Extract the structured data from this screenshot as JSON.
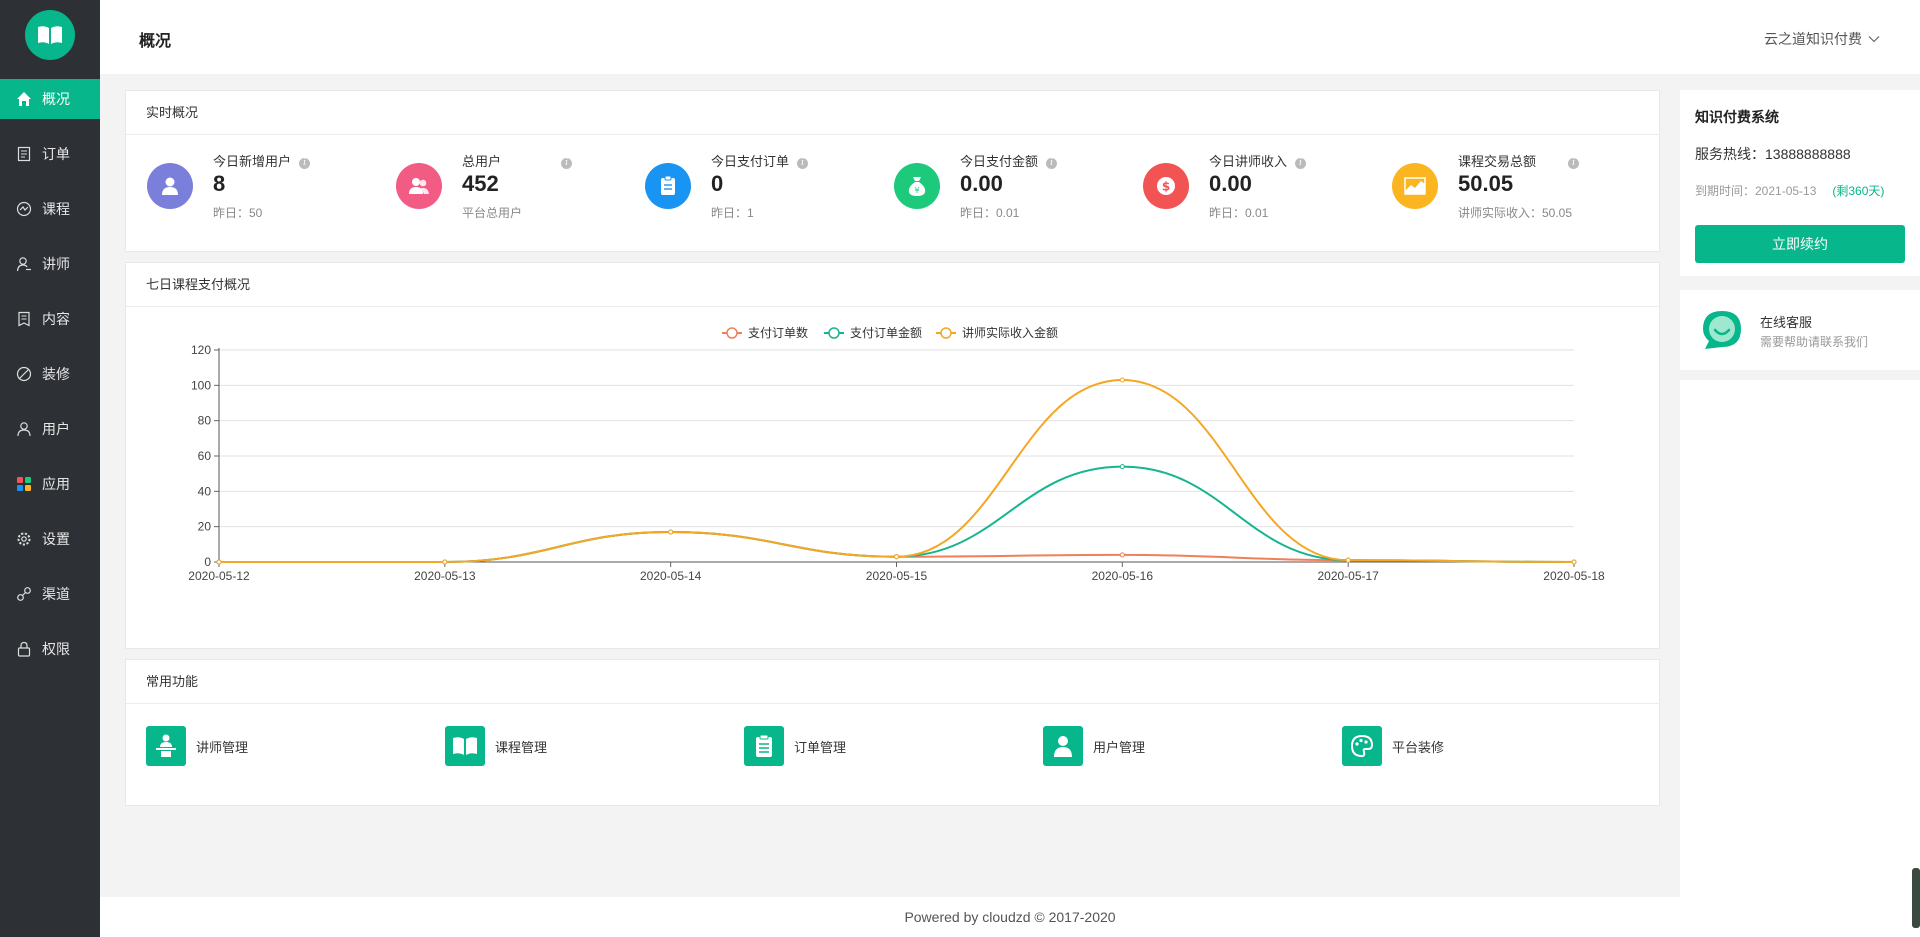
{
  "header": {
    "title": "概况",
    "shop_name": "云之道知识付费"
  },
  "sidebar": {
    "items": [
      {
        "label": "概况",
        "icon": "home-icon"
      },
      {
        "label": "订单",
        "icon": "order-icon"
      },
      {
        "label": "课程",
        "icon": "course-icon"
      },
      {
        "label": "讲师",
        "icon": "teacher-icon"
      },
      {
        "label": "内容",
        "icon": "content-icon"
      },
      {
        "label": "装修",
        "icon": "decorate-icon"
      },
      {
        "label": "用户",
        "icon": "user-icon"
      },
      {
        "label": "应用",
        "icon": "apps-icon"
      },
      {
        "label": "设置",
        "icon": "gear-icon"
      },
      {
        "label": "渠道",
        "icon": "channel-icon"
      },
      {
        "label": "权限",
        "icon": "lock-icon"
      }
    ]
  },
  "realtime": {
    "title": "实时概况",
    "stats": [
      {
        "label": "今日新增用户",
        "value": "8",
        "sub": "昨日：50",
        "color": "#7b7fdc"
      },
      {
        "label": "总用户",
        "value": "452",
        "sub": "平台总用户",
        "color": "#f25b84"
      },
      {
        "label": "今日支付订单",
        "value": "0",
        "sub": "昨日：1",
        "color": "#1a94f2"
      },
      {
        "label": "今日支付金额",
        "value": "0.00",
        "sub": "昨日：0.01",
        "color": "#1dc97a"
      },
      {
        "label": "今日讲师收入",
        "value": "0.00",
        "sub": "昨日：0.01",
        "color": "#f25353"
      },
      {
        "label": "课程交易总额",
        "value": "50.05",
        "sub": "讲师实际收入：50.05",
        "color": "#fbb520"
      }
    ]
  },
  "chart_panel": {
    "title": "七日课程支付概况"
  },
  "chart_data": {
    "type": "line",
    "categories": [
      "2020-05-12",
      "2020-05-13",
      "2020-05-14",
      "2020-05-15",
      "2020-05-16",
      "2020-05-17",
      "2020-05-18"
    ],
    "ylim": [
      0,
      120
    ],
    "yticks": [
      0,
      20,
      40,
      60,
      80,
      100,
      120
    ],
    "legend_position": "top-center",
    "grid": true,
    "smooth": true,
    "series": [
      {
        "name": "支付订单数",
        "color": "#f0805a",
        "values": [
          0,
          0,
          17,
          3,
          4,
          1,
          0
        ]
      },
      {
        "name": "支付订单金额",
        "color": "#17b58f",
        "values": [
          0,
          0,
          17,
          3,
          54,
          1,
          0
        ]
      },
      {
        "name": "讲师实际收入金额",
        "color": "#f5a623",
        "values": [
          0,
          0,
          17,
          3,
          103,
          1,
          0
        ]
      }
    ]
  },
  "functions": {
    "title": "常用功能",
    "items": [
      {
        "label": "讲师管理",
        "icon": "teacher-manage-icon"
      },
      {
        "label": "课程管理",
        "icon": "book-icon"
      },
      {
        "label": "订单管理",
        "icon": "clipboard-icon"
      },
      {
        "label": "用户管理",
        "icon": "user-manage-icon"
      },
      {
        "label": "平台装修",
        "icon": "palette-icon"
      }
    ]
  },
  "system": {
    "title": "知识付费系统",
    "hotline": "服务热线：13888888888",
    "expire": "到期时间：2021-05-13",
    "remaining": "(剩360天)",
    "renew_label": "立即续约"
  },
  "service": {
    "title": "在线客服",
    "subtitle": "需要帮助请联系我们"
  },
  "footer": {
    "text": "Powered by cloudzd © 2017-2020"
  }
}
